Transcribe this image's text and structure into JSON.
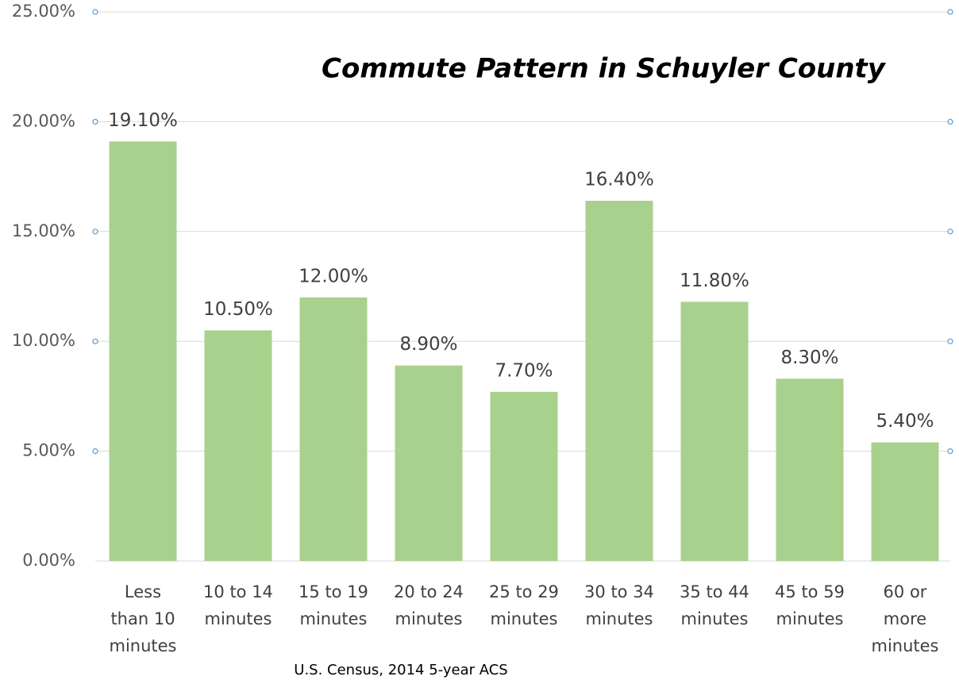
{
  "chart_data": {
    "type": "bar",
    "title": "Commute Pattern in Schuyler County",
    "source": "U.S. Census, 2014 5-year ACS",
    "categories": [
      "Less\nthan 10\nminutes",
      "10 to 14\nminutes",
      "15 to 19\nminutes",
      "20 to 24\nminutes",
      "25 to 29\nminutes",
      "30 to 34\nminutes",
      "35 to 44\nminutes",
      "45 to 59\nminutes",
      "60 or\nmore\nminutes"
    ],
    "values": [
      19.1,
      10.5,
      12.0,
      8.9,
      7.7,
      16.4,
      11.8,
      8.3,
      5.4
    ],
    "value_labels": [
      "19.10%",
      "10.50%",
      "12.00%",
      "8.90%",
      "7.70%",
      "16.40%",
      "11.80%",
      "8.30%",
      "5.40%"
    ],
    "color": "#a9d18e",
    "ylim": [
      0,
      25
    ],
    "yticks": [
      {
        "value": 0,
        "label": "0.00%"
      },
      {
        "value": 5,
        "label": "5.00%"
      },
      {
        "value": 10,
        "label": "10.00%"
      },
      {
        "value": 15,
        "label": "15.00%"
      },
      {
        "value": 20,
        "label": "20.00%"
      },
      {
        "value": 25,
        "label": "25.00%"
      }
    ],
    "grid": true
  }
}
